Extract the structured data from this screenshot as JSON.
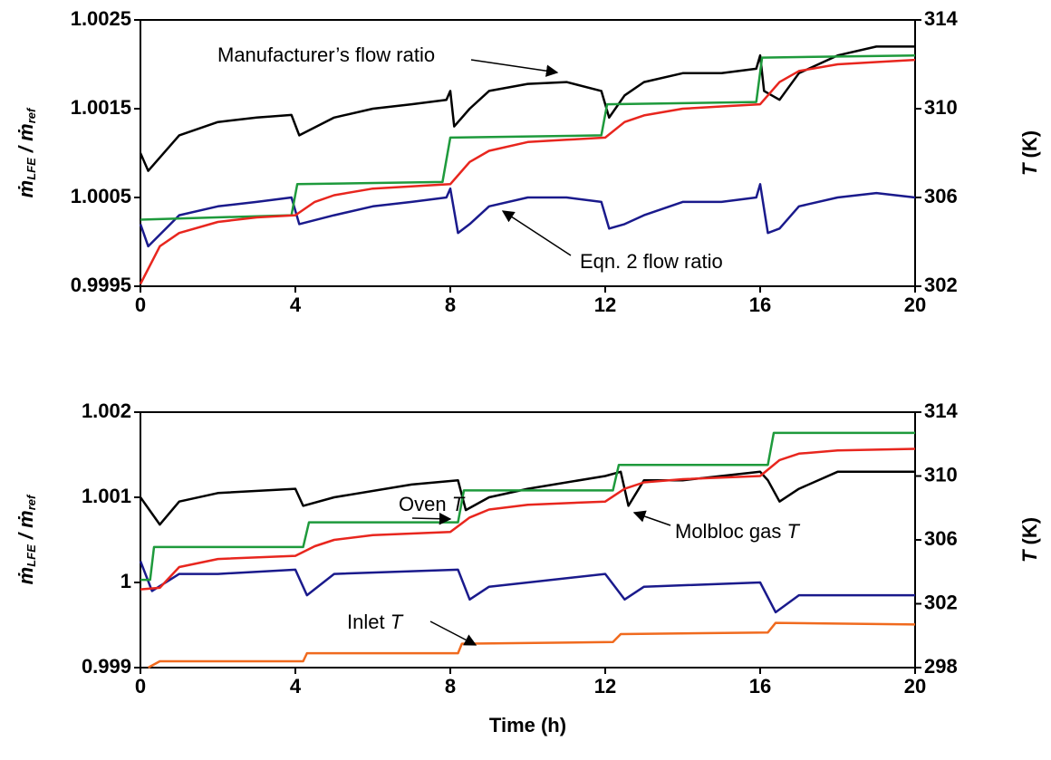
{
  "chart_data": [
    {
      "type": "line",
      "ylabel": [
        "ṁ",
        "LFE",
        " / ",
        "ṁ",
        "ref"
      ],
      "y2label": [
        "T",
        " (K)"
      ],
      "xlim": [
        0,
        20
      ],
      "xticks": [
        0,
        4,
        8,
        12,
        16,
        20
      ],
      "ylim": [
        0.9995,
        1.0025
      ],
      "yticks": [
        0.9995,
        1.0005,
        1.0015,
        1.0025
      ],
      "y2lim": [
        302,
        314
      ],
      "y2ticks": [
        302,
        306,
        310,
        314
      ],
      "annotations": [
        {
          "text": "Manufacturer’s flow ratio"
        },
        {
          "text": "Eqn. 2 flow ratio"
        }
      ],
      "series": [
        {
          "color": "#000000",
          "x": [
            0,
            0.2,
            1,
            2,
            3,
            3.9,
            4.1,
            5,
            6,
            7,
            7.9,
            8.0,
            8.1,
            8.5,
            9,
            10,
            11,
            11.9,
            12.1,
            12.5,
            13,
            14,
            15,
            15.9,
            16.0,
            16.1,
            16.5,
            17,
            18,
            19,
            20
          ],
          "values": [
            1.001,
            1.0008,
            1.0012,
            1.00135,
            1.0014,
            1.00143,
            1.0012,
            1.0014,
            1.0015,
            1.00155,
            1.0016,
            1.0017,
            1.0013,
            1.0015,
            1.0017,
            1.00178,
            1.0018,
            1.0017,
            1.0014,
            1.00165,
            1.0018,
            1.0019,
            1.0019,
            1.00195,
            1.0021,
            1.0017,
            1.0016,
            1.0019,
            1.0021,
            1.0022,
            1.0022
          ]
        },
        {
          "color": "#1a1a8c",
          "x": [
            0,
            0.2,
            1,
            2,
            3,
            3.9,
            4.1,
            5,
            6,
            7,
            7.9,
            8.0,
            8.2,
            8.5,
            9,
            10,
            11,
            11.9,
            12.1,
            12.5,
            13,
            14,
            15,
            15.9,
            16.0,
            16.2,
            16.5,
            17,
            18,
            19,
            20
          ],
          "values": [
            1.0002,
            0.99995,
            1.0003,
            1.0004,
            1.00045,
            1.0005,
            1.0002,
            1.0003,
            1.0004,
            1.00045,
            1.0005,
            1.0006,
            1.0001,
            1.0002,
            1.0004,
            1.0005,
            1.0005,
            1.00045,
            1.00015,
            1.0002,
            1.0003,
            1.00045,
            1.00045,
            1.0005,
            1.00065,
            1.0001,
            1.00015,
            1.0004,
            1.0005,
            1.00055,
            1.0005
          ]
        },
        {
          "color": "#1e9a3c",
          "axis": "y2",
          "x": [
            0,
            3.9,
            4.05,
            7.8,
            8.0,
            11.9,
            12.05,
            15.9,
            16.05,
            20
          ],
          "values": [
            305.0,
            305.2,
            306.6,
            306.7,
            308.7,
            308.8,
            310.2,
            310.3,
            312.3,
            312.4
          ]
        },
        {
          "color": "#e8261e",
          "axis": "y2",
          "x": [
            0,
            0.5,
            1,
            2,
            3,
            4,
            4.5,
            5,
            6,
            7,
            8,
            8.5,
            9,
            10,
            11,
            12,
            12.5,
            13,
            14,
            15,
            16,
            16.5,
            17,
            18,
            19,
            20
          ],
          "values": [
            302.1,
            303.8,
            304.4,
            304.9,
            305.1,
            305.2,
            305.8,
            306.1,
            306.4,
            306.5,
            306.6,
            307.6,
            308.1,
            308.5,
            308.6,
            308.7,
            309.4,
            309.7,
            310.0,
            310.1,
            310.2,
            311.2,
            311.7,
            312.0,
            312.1,
            312.2
          ]
        }
      ]
    },
    {
      "type": "line",
      "ylabel": [
        "ṁ",
        "LFE",
        " / ",
        "ṁ",
        "ref"
      ],
      "y2label": [
        "T",
        " (K)"
      ],
      "xlabel": "Time (h)",
      "xlim": [
        0,
        20
      ],
      "xticks": [
        0,
        4,
        8,
        12,
        16,
        20
      ],
      "ylim": [
        0.999,
        1.002
      ],
      "yticks": [
        0.999,
        1,
        1.001,
        1.002
      ],
      "y2lim": [
        298,
        314
      ],
      "y2ticks": [
        298,
        302,
        306,
        310,
        314
      ],
      "annotations": [
        {
          "text": "Oven ",
          "italic": "T"
        },
        {
          "text": "Molbloc gas ",
          "italic": "T"
        },
        {
          "text": "Inlet ",
          "italic": "T"
        }
      ],
      "series": [
        {
          "color": "#000000",
          "x": [
            0,
            0.5,
            1,
            2,
            4,
            4.2,
            5,
            7,
            8.2,
            8.4,
            9,
            10,
            12,
            12.4,
            12.6,
            13,
            14,
            16,
            16.2,
            16.5,
            17,
            18,
            20
          ],
          "values": [
            1.001,
            1.00068,
            1.00095,
            1.00105,
            1.0011,
            1.0009,
            1.001,
            1.00115,
            1.0012,
            1.00085,
            1.001,
            1.0011,
            1.00125,
            1.0013,
            1.0009,
            1.0012,
            1.0012,
            1.0013,
            1.0012,
            1.00095,
            1.0011,
            1.0013,
            1.0013
          ]
        },
        {
          "color": "#1a1a8c",
          "x": [
            0,
            0.3,
            1,
            2,
            4,
            4.3,
            5,
            8.2,
            8.5,
            9,
            12,
            12.5,
            13,
            16,
            16.4,
            17,
            20
          ],
          "values": [
            1.00025,
            0.9999,
            1.0001,
            1.0001,
            1.00015,
            0.99985,
            1.0001,
            1.00015,
            0.9998,
            0.99995,
            1.0001,
            0.9998,
            0.99995,
            1.0,
            0.99965,
            0.99985,
            0.99985
          ]
        },
        {
          "color": "#1e9a3c",
          "axis": "y2",
          "x": [
            0,
            0.25,
            0.35,
            4.2,
            4.35,
            8.2,
            8.35,
            12.2,
            12.35,
            16.2,
            16.35,
            20
          ],
          "values": [
            303.5,
            303.5,
            305.55,
            305.55,
            307.1,
            307.1,
            309.1,
            309.1,
            310.7,
            310.7,
            312.7,
            312.7
          ]
        },
        {
          "color": "#e8261e",
          "axis": "y2",
          "x": [
            0,
            0.5,
            1,
            2,
            4,
            4.5,
            5,
            6,
            8,
            8.5,
            9,
            10,
            12,
            12.5,
            13,
            14,
            16,
            16.5,
            17,
            18,
            20
          ],
          "values": [
            302.9,
            303.0,
            304.3,
            304.8,
            305.0,
            305.6,
            306.0,
            306.3,
            306.5,
            307.4,
            307.9,
            308.2,
            308.4,
            309.2,
            309.6,
            309.8,
            310.0,
            311.0,
            311.4,
            311.6,
            311.7
          ]
        },
        {
          "color": "#f06a1e",
          "axis": "y2",
          "x": [
            0.2,
            0.5,
            4.2,
            4.3,
            8.2,
            8.3,
            12.2,
            12.4,
            16.2,
            16.4,
            20
          ],
          "values": [
            298.0,
            298.4,
            298.4,
            298.9,
            298.9,
            299.5,
            299.6,
            300.1,
            300.2,
            300.8,
            300.7
          ]
        }
      ]
    }
  ]
}
